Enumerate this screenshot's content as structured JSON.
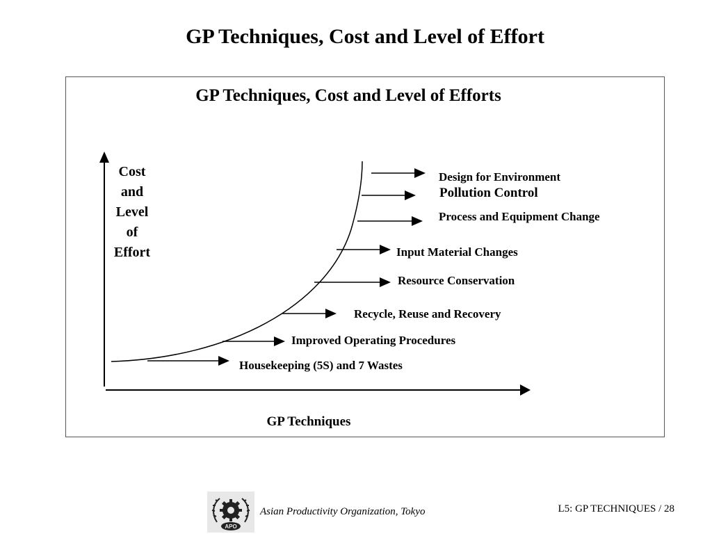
{
  "slide": {
    "title": "GP Techniques, Cost and Level of Effort"
  },
  "diagram": {
    "title": "GP Techniques, Cost and Level of Efforts",
    "y_axis_label": "Cost and Level of Effort",
    "y_axis_lines": [
      "Cost",
      "and",
      "Level",
      "of",
      "Effort"
    ],
    "x_axis_label": "GP Techniques",
    "techniques": [
      {
        "label": "Design for Environment"
      },
      {
        "label": "Pollution Control"
      },
      {
        "label": "Process and Equipment Change"
      },
      {
        "label": "Input Material Changes"
      },
      {
        "label": "Resource Conservation"
      },
      {
        "label": "Recycle, Reuse and Recovery"
      },
      {
        "label": "Improved Operating Procedures"
      },
      {
        "label": "Housekeeping (5S) and 7 Wastes"
      }
    ]
  },
  "footer": {
    "logo_text": "APO",
    "organization": "Asian Productivity Organization, Tokyo",
    "page_ref": "L5: GP TECHNIQUES / 28"
  }
}
